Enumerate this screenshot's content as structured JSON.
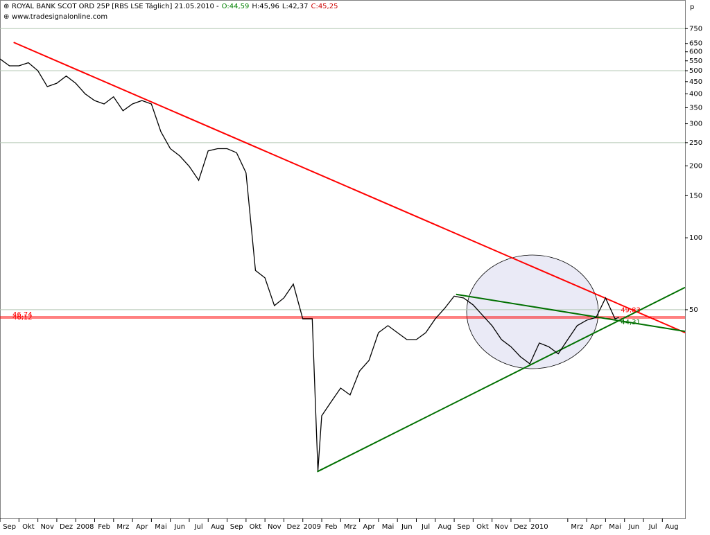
{
  "chart_data": {
    "type": "line",
    "title": "ROYAL BANK SCOT ORD 25P [RBS LSE  Täglich] 21.05.2010 -",
    "open_label": "O:44,59",
    "high_label": "H:45,96",
    "low_label": "L:42,37",
    "close_label": "C:45,25",
    "subtitle": "www.tradesignalonline.com",
    "y_axis_label": "p",
    "log_y": true,
    "grid": true,
    "xlim": [
      0,
      36.2
    ],
    "ylim": [
      6.7,
      975
    ],
    "xticks": [
      {
        "value": 0.5,
        "label": "Sep"
      },
      {
        "value": 1.5,
        "label": "Okt"
      },
      {
        "value": 2.5,
        "label": "Nov"
      },
      {
        "value": 3.5,
        "label": "Dez"
      },
      {
        "value": 4.5,
        "label": "2008"
      },
      {
        "value": 5.5,
        "label": "Feb"
      },
      {
        "value": 6.5,
        "label": "Mrz"
      },
      {
        "value": 7.5,
        "label": "Apr"
      },
      {
        "value": 8.5,
        "label": "Mai"
      },
      {
        "value": 9.5,
        "label": "Jun"
      },
      {
        "value": 10.5,
        "label": "Jul"
      },
      {
        "value": 11.5,
        "label": "Aug"
      },
      {
        "value": 12.5,
        "label": "Sep"
      },
      {
        "value": 13.5,
        "label": "Okt"
      },
      {
        "value": 14.5,
        "label": "Nov"
      },
      {
        "value": 15.5,
        "label": "Dez"
      },
      {
        "value": 16.5,
        "label": "2009"
      },
      {
        "value": 17.5,
        "label": "Feb"
      },
      {
        "value": 18.5,
        "label": "Mrz"
      },
      {
        "value": 19.5,
        "label": "Apr"
      },
      {
        "value": 20.5,
        "label": "Mai"
      },
      {
        "value": 21.5,
        "label": "Jun"
      },
      {
        "value": 22.5,
        "label": "Jul"
      },
      {
        "value": 23.5,
        "label": "Aug"
      },
      {
        "value": 24.5,
        "label": "Sep"
      },
      {
        "value": 25.5,
        "label": "Okt"
      },
      {
        "value": 26.5,
        "label": "Nov"
      },
      {
        "value": 27.5,
        "label": "Dez"
      },
      {
        "value": 28.5,
        "label": "2010"
      },
      {
        "value": 30.5,
        "label": "Mrz"
      },
      {
        "value": 31.5,
        "label": "Apr"
      },
      {
        "value": 32.5,
        "label": "Mai"
      },
      {
        "value": 33.5,
        "label": "Jun"
      },
      {
        "value": 34.5,
        "label": "Jul"
      },
      {
        "value": 35.5,
        "label": "Aug"
      }
    ],
    "yticks": [
      750,
      650,
      600,
      550,
      500,
      450,
      400,
      350,
      300,
      250,
      200,
      150,
      100,
      50
    ],
    "grid_values": [
      750,
      500,
      250,
      50
    ],
    "series": [
      {
        "name": "RBS",
        "color": "#000000",
        "x": [
          0,
          0.5,
          1,
          1.5,
          2,
          2.5,
          3,
          3.5,
          4,
          4.5,
          5,
          5.5,
          6,
          6.5,
          7,
          7.5,
          8,
          8.5,
          9,
          9.5,
          10,
          10.5,
          11,
          11.5,
          12,
          12.5,
          13,
          13.5,
          14,
          14.5,
          15,
          15.5,
          16,
          16.5,
          16.8,
          17,
          17.5,
          18,
          18.5,
          19,
          19.5,
          20,
          20.5,
          21,
          21.5,
          22,
          22.5,
          23,
          23.5,
          24,
          24.5,
          25,
          25.5,
          26,
          26.5,
          27,
          27.5,
          28,
          28.5,
          29,
          29.5,
          30,
          30.5,
          31,
          31.5,
          32,
          32.5,
          32.7
        ],
        "values": [
          560,
          524,
          524,
          540,
          500,
          429,
          443,
          475,
          443,
          400,
          375,
          363,
          389,
          340,
          363,
          375,
          363,
          278,
          236,
          220,
          199,
          174,
          231,
          236,
          236,
          227,
          187,
          73,
          68,
          52,
          56,
          64,
          45.8,
          45.8,
          10.6,
          18,
          20.6,
          23.5,
          22,
          27.7,
          30.7,
          40.1,
          42.9,
          40.1,
          37.5,
          37.5,
          40.1,
          45.8,
          50.7,
          57,
          56,
          52.4,
          47.4,
          42.9,
          37.5,
          35,
          31.8,
          29.7,
          36.3,
          35,
          32.7,
          37.5,
          42.9,
          45.2,
          46.4,
          56,
          45.8,
          46.4
        ]
      }
    ],
    "trendlines": [
      {
        "color": "#ff0000",
        "x": [
          0.72,
          36.2
        ],
        "values": [
          657,
          40.1
        ]
      },
      {
        "color": "#007000",
        "x": [
          16.76,
          36.2
        ],
        "values": [
          10.5,
          62
        ]
      },
      {
        "color": "#007000",
        "x": [
          24.1,
          36.2
        ],
        "values": [
          58,
          40.6
        ]
      }
    ],
    "levels": [
      {
        "value": 46.74,
        "label": "46,74",
        "color": "#ff0000"
      },
      {
        "value": 46.12,
        "label": "46,12",
        "color": "#ff0000"
      }
    ],
    "annotations": [
      {
        "x": 32.8,
        "value": 49.83,
        "label": "49,83",
        "color": "#ff0000"
      },
      {
        "x": 32.8,
        "value": 44.31,
        "label": "44,31",
        "color": "#007000"
      }
    ]
  }
}
